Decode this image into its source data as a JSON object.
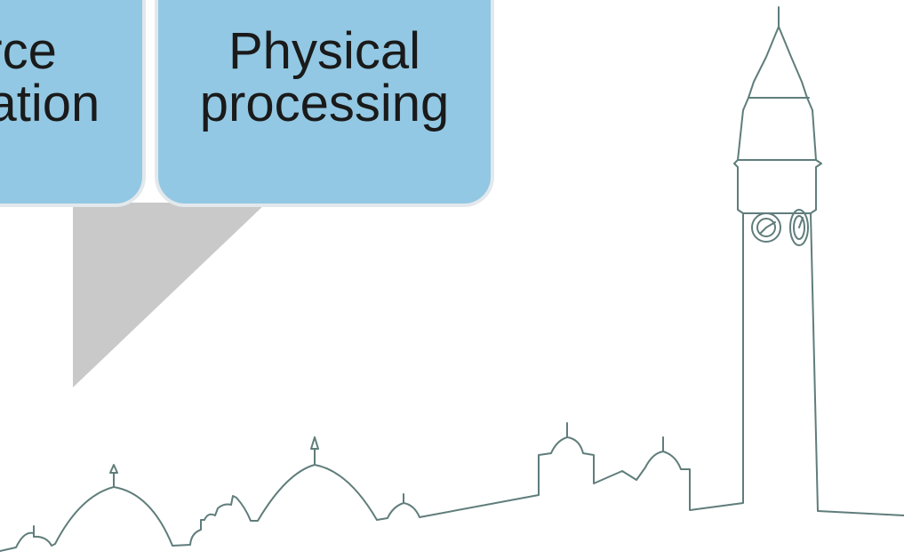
{
  "boxes": [
    {
      "id": "left",
      "lines": [
        "Source",
        "Separation"
      ]
    },
    {
      "id": "right",
      "lines": [
        "Physical",
        "processing"
      ]
    }
  ],
  "colors": {
    "box_fill": "#92c8e3",
    "box_border": "#e3e8ec",
    "arrow_fill": "#c9c9c9",
    "skyline_stroke": "#5f7d7b",
    "text": "#1a1a1a"
  }
}
